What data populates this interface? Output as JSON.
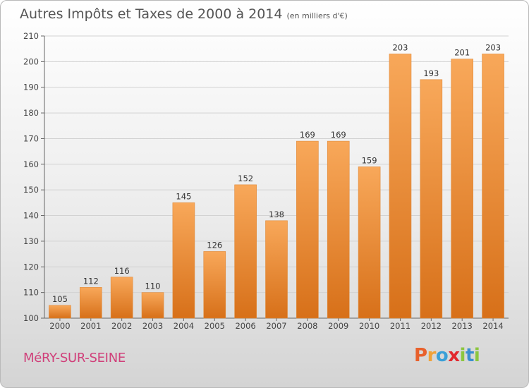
{
  "title": "Autres Impôts et Taxes de 2000 à 2014",
  "subtitle": "(en milliers d'€)",
  "city": "MéRY-SUR-SEINE",
  "logo": {
    "letters": [
      "P",
      "r",
      "o",
      "x",
      "i",
      "t",
      "i"
    ],
    "colors": [
      "#e8612c",
      "#f0a23a",
      "#3aa0d8",
      "#e2282e",
      "#8cc63f",
      "#3a8fd0",
      "#8cc63f"
    ]
  },
  "colors": {
    "bar_top": "#f8a85a",
    "bar_bottom": "#d77019",
    "bar_edge": "#e08a3a"
  },
  "chart_data": {
    "type": "bar",
    "categories": [
      "2000",
      "2001",
      "2002",
      "2003",
      "2004",
      "2005",
      "2006",
      "2007",
      "2008",
      "2009",
      "2010",
      "2011",
      "2012",
      "2013",
      "2014"
    ],
    "values": [
      105,
      112,
      116,
      110,
      145,
      126,
      152,
      138,
      169,
      169,
      159,
      203,
      193,
      201,
      203
    ],
    "title": "Autres Impôts et Taxes de 2000 à 2014",
    "subtitle": "(en milliers d'€)",
    "xlabel": "",
    "ylabel": "",
    "ylim": [
      100,
      210
    ],
    "yticks": [
      100,
      110,
      120,
      130,
      140,
      150,
      160,
      170,
      180,
      190,
      200,
      210
    ],
    "grid": true
  }
}
